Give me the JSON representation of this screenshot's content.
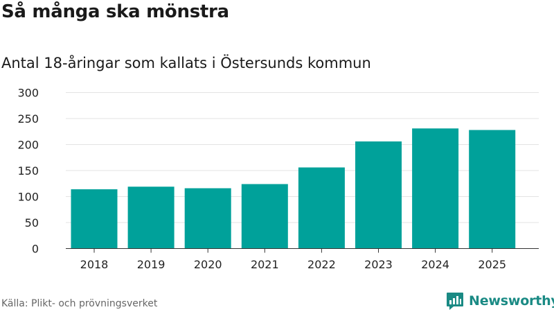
{
  "header": {
    "title": "Så många ska mönstra",
    "subtitle": "Antal 18-åringar som kallats i Östersunds kommun"
  },
  "footer": {
    "source": "Källa: Plikt- och prövningsverket",
    "brand": "Newsworthy"
  },
  "colors": {
    "bar": "#00a19a",
    "brand": "#1a8a84"
  },
  "chart_data": {
    "type": "bar",
    "title": "Så många ska mönstra",
    "subtitle": "Antal 18-åringar som kallats i Östersunds kommun",
    "xlabel": "",
    "ylabel": "",
    "categories": [
      "2018",
      "2019",
      "2020",
      "2021",
      "2022",
      "2023",
      "2024",
      "2025"
    ],
    "values": [
      114,
      119,
      116,
      124,
      156,
      206,
      231,
      228
    ],
    "ylim": [
      0,
      300
    ],
    "yticks": [
      0,
      50,
      100,
      150,
      200,
      250,
      300
    ],
    "grid": true
  }
}
